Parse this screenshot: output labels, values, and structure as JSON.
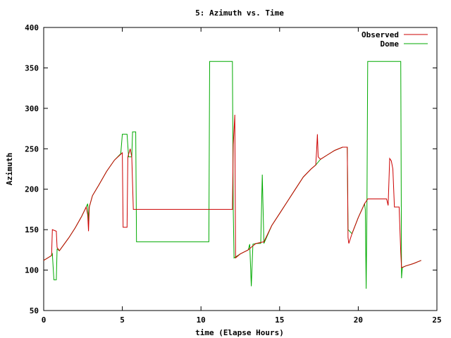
{
  "chart_data": {
    "type": "line",
    "title": "5: Azimuth vs. Time",
    "xlabel": "time (Elapse Hours)",
    "ylabel": "Azimuth",
    "xlim": [
      0,
      25
    ],
    "ylim": [
      50,
      400
    ],
    "xticks": [
      0,
      5,
      10,
      15,
      20,
      25
    ],
    "yticks": [
      50,
      100,
      150,
      200,
      250,
      300,
      350,
      400
    ],
    "grid": false,
    "legend_position": "top-right",
    "series": [
      {
        "name": "Observed",
        "color": "#cc0000",
        "points": [
          [
            0.0,
            112
          ],
          [
            0.5,
            118
          ],
          [
            0.55,
            150
          ],
          [
            0.8,
            148
          ],
          [
            0.85,
            128
          ],
          [
            1.0,
            124
          ],
          [
            1.3,
            132
          ],
          [
            1.6,
            140
          ],
          [
            2.0,
            152
          ],
          [
            2.4,
            166
          ],
          [
            2.7,
            178
          ],
          [
            2.8,
            168
          ],
          [
            2.85,
            148
          ],
          [
            2.9,
            178
          ],
          [
            3.1,
            192
          ],
          [
            3.5,
            205
          ],
          [
            4.0,
            222
          ],
          [
            4.5,
            236
          ],
          [
            5.0,
            245
          ],
          [
            5.05,
            153
          ],
          [
            5.3,
            153
          ],
          [
            5.35,
            240
          ],
          [
            5.5,
            250
          ],
          [
            5.6,
            240
          ],
          [
            5.7,
            175
          ],
          [
            6.0,
            175
          ],
          [
            10.5,
            175
          ],
          [
            12.0,
            175
          ],
          [
            12.05,
            255
          ],
          [
            12.15,
            292
          ],
          [
            12.2,
            115
          ],
          [
            12.5,
            120
          ],
          [
            13.0,
            125
          ],
          [
            13.3,
            130
          ],
          [
            13.5,
            133
          ],
          [
            14.0,
            135
          ],
          [
            14.5,
            155
          ],
          [
            15.0,
            170
          ],
          [
            15.5,
            185
          ],
          [
            16.0,
            200
          ],
          [
            16.5,
            215
          ],
          [
            17.0,
            225
          ],
          [
            17.3,
            230
          ],
          [
            17.35,
            248
          ],
          [
            17.4,
            268
          ],
          [
            17.45,
            240
          ],
          [
            17.6,
            237
          ],
          [
            18.0,
            242
          ],
          [
            18.5,
            248
          ],
          [
            19.0,
            252
          ],
          [
            19.3,
            252
          ],
          [
            19.35,
            140
          ],
          [
            19.4,
            133
          ],
          [
            19.6,
            145
          ],
          [
            20.0,
            165
          ],
          [
            20.4,
            182
          ],
          [
            20.6,
            188
          ],
          [
            21.5,
            188
          ],
          [
            21.8,
            188
          ],
          [
            21.9,
            180
          ],
          [
            22.0,
            238
          ],
          [
            22.1,
            235
          ],
          [
            22.2,
            225
          ],
          [
            22.3,
            178
          ],
          [
            22.6,
            178
          ],
          [
            22.7,
            122
          ],
          [
            22.75,
            103
          ],
          [
            23.0,
            105
          ],
          [
            23.5,
            108
          ],
          [
            24.0,
            112
          ]
        ]
      },
      {
        "name": "Dome",
        "color": "#00aa00",
        "points": [
          [
            0.0,
            112
          ],
          [
            0.5,
            118
          ],
          [
            0.55,
            120
          ],
          [
            0.65,
            88
          ],
          [
            0.8,
            88
          ],
          [
            0.85,
            126
          ],
          [
            1.0,
            124
          ],
          [
            1.3,
            132
          ],
          [
            1.6,
            140
          ],
          [
            2.0,
            152
          ],
          [
            2.4,
            166
          ],
          [
            2.7,
            178
          ],
          [
            2.8,
            182
          ],
          [
            2.85,
            160
          ],
          [
            2.9,
            178
          ],
          [
            3.1,
            192
          ],
          [
            3.5,
            205
          ],
          [
            4.0,
            222
          ],
          [
            4.5,
            236
          ],
          [
            4.9,
            244
          ],
          [
            5.0,
            268
          ],
          [
            5.3,
            268
          ],
          [
            5.4,
            240
          ],
          [
            5.6,
            240
          ],
          [
            5.65,
            271
          ],
          [
            5.85,
            271
          ],
          [
            5.9,
            135
          ],
          [
            6.0,
            135
          ],
          [
            10.5,
            135
          ],
          [
            10.55,
            358
          ],
          [
            12.0,
            358
          ],
          [
            12.05,
            175
          ],
          [
            12.1,
            115
          ],
          [
            12.5,
            120
          ],
          [
            13.0,
            125
          ],
          [
            13.1,
            132
          ],
          [
            13.2,
            80
          ],
          [
            13.3,
            132
          ],
          [
            13.5,
            133
          ],
          [
            13.8,
            133
          ],
          [
            13.9,
            218
          ],
          [
            14.0,
            133
          ],
          [
            14.5,
            155
          ],
          [
            15.0,
            170
          ],
          [
            15.5,
            185
          ],
          [
            16.0,
            200
          ],
          [
            16.5,
            215
          ],
          [
            17.0,
            225
          ],
          [
            17.3,
            230
          ],
          [
            17.6,
            237
          ],
          [
            18.0,
            242
          ],
          [
            18.5,
            248
          ],
          [
            19.0,
            252
          ],
          [
            19.3,
            252
          ],
          [
            19.35,
            150
          ],
          [
            19.6,
            145
          ],
          [
            20.0,
            165
          ],
          [
            20.4,
            182
          ],
          [
            20.45,
            175
          ],
          [
            20.5,
            77
          ],
          [
            20.55,
            175
          ],
          [
            20.6,
            358
          ],
          [
            22.7,
            358
          ],
          [
            22.75,
            90
          ],
          [
            22.8,
            103
          ],
          [
            23.0,
            105
          ],
          [
            23.5,
            108
          ],
          [
            24.0,
            112
          ]
        ]
      }
    ]
  }
}
